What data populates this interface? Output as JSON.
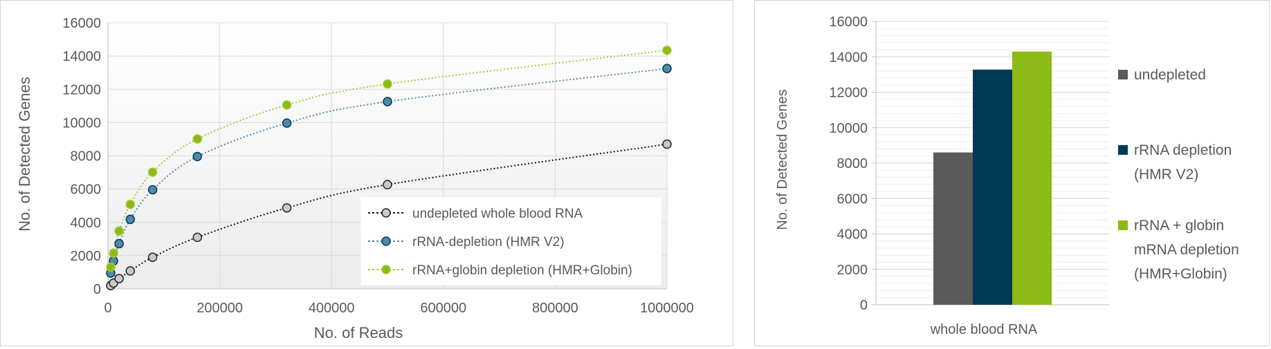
{
  "colors": {
    "undepleted": "#5a5a5a",
    "undepleted_line": "#111111",
    "hmr": "#003a58",
    "hmr_marker": "#4f8aa6",
    "globin": "#8cba16",
    "globin_marker": "#a3c93a",
    "grid": "#d9d9d9",
    "axis": "#bfbfbf",
    "text": "#595959"
  },
  "chart_data": [
    {
      "type": "scatter",
      "xlabel": "No. of Reads",
      "ylabel": "No. of Detected Genes",
      "xlim": [
        0,
        1000000
      ],
      "ylim": [
        0,
        16000
      ],
      "xticks": [
        "0",
        "200000",
        "400000",
        "600000",
        "800000",
        "1000000"
      ],
      "yticks": [
        "0",
        "2000",
        "4000",
        "6000",
        "8000",
        "10000",
        "12000",
        "14000",
        "16000"
      ],
      "grid": true,
      "legend_position": "bottom-right",
      "series": [
        {
          "name": "undepleted whole blood RNA",
          "points": [
            [
              5000,
              200
            ],
            [
              10000,
              350
            ],
            [
              20000,
              620
            ],
            [
              40000,
              1080
            ],
            [
              80000,
              1900
            ],
            [
              160000,
              3100
            ],
            [
              320000,
              4870
            ],
            [
              500000,
              6270
            ],
            [
              1000000,
              8700
            ]
          ]
        },
        {
          "name": "rRNA-depletion (HMR V2)",
          "points": [
            [
              5000,
              950
            ],
            [
              10000,
              1680
            ],
            [
              20000,
              2720
            ],
            [
              40000,
              4180
            ],
            [
              80000,
              5960
            ],
            [
              160000,
              7960
            ],
            [
              320000,
              9970
            ],
            [
              500000,
              11260
            ],
            [
              1000000,
              13250
            ]
          ]
        },
        {
          "name": "rRNA+globin depletion (HMR+Globin)",
          "points": [
            [
              5000,
              1310
            ],
            [
              10000,
              2150
            ],
            [
              20000,
              3480
            ],
            [
              40000,
              5080
            ],
            [
              80000,
              7020
            ],
            [
              160000,
              9020
            ],
            [
              320000,
              11060
            ],
            [
              500000,
              12320
            ],
            [
              1000000,
              14350
            ]
          ]
        }
      ]
    },
    {
      "type": "bar",
      "categories": [
        "whole blood RNA"
      ],
      "ylabel": "No. of Detected  Genes",
      "ylim": [
        0,
        16000
      ],
      "yticks": [
        "0",
        "2000",
        "4000",
        "6000",
        "8000",
        "10000",
        "12000",
        "14000",
        "16000"
      ],
      "grid": true,
      "legend_position": "right",
      "series": [
        {
          "name": "undepleted",
          "legend_lines": [
            "undepleted"
          ],
          "values": [
            8600
          ]
        },
        {
          "name": "rRNA depletion (HMR V2)",
          "legend_lines": [
            "rRNA depletion",
            "(HMR V2)"
          ],
          "values": [
            13280
          ]
        },
        {
          "name": "rRNA + globin mRNA depletion (HMR+Globin)",
          "legend_lines": [
            "rRNA + globin",
            "mRNA depletion",
            "(HMR+Globin)"
          ],
          "values": [
            14300
          ]
        }
      ]
    }
  ]
}
